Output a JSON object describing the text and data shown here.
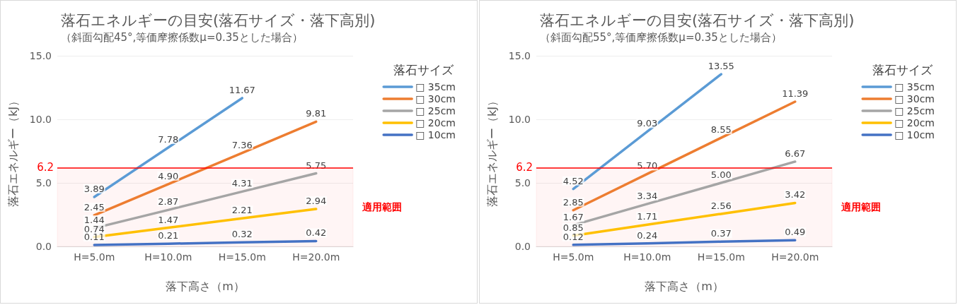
{
  "chart_data": [
    {
      "type": "line",
      "title": "落石エネルギーの目安(落石サイズ・落下高別)",
      "subtitle": "（斜面勾配45°,等価摩擦係数μ=0.35とした場合）",
      "xlabel": "落下高さ（m）",
      "ylabel": "落石エネルギー（kJ）",
      "legend_title": "落石サイズ",
      "categories": [
        "H=5.0m",
        "H=10.0m",
        "H=15.0m",
        "H=20.0m"
      ],
      "series": [
        {
          "name": "□ 35cm",
          "color": "#5b9bd5",
          "values": [
            3.89,
            7.78,
            11.67,
            null
          ],
          "value_labels": [
            "3.89",
            "7.78",
            "11.67",
            null
          ]
        },
        {
          "name": "□ 30cm",
          "color": "#ed7d31",
          "values": [
            2.45,
            4.9,
            7.36,
            9.81
          ],
          "value_labels": [
            "2.45",
            "4.90",
            "7.36",
            "9.81"
          ]
        },
        {
          "name": "□ 25cm",
          "color": "#a5a5a5",
          "values": [
            1.44,
            2.87,
            4.31,
            5.75
          ],
          "value_labels": [
            "1.44",
            "2.87",
            "4.31",
            "5.75"
          ]
        },
        {
          "name": "□ 20cm",
          "color": "#ffc000",
          "values": [
            0.74,
            1.47,
            2.21,
            2.94
          ],
          "value_labels": [
            "0.74",
            "1.47",
            "2.21",
            "2.94"
          ]
        },
        {
          "name": "□ 10cm",
          "color": "#4472c4",
          "values": [
            0.11,
            0.21,
            0.32,
            0.42
          ],
          "value_labels": [
            "0.11",
            "0.21",
            "0.32",
            "0.42"
          ]
        }
      ],
      "ylim": [
        0,
        15
      ],
      "yticks": [
        {
          "value": 0,
          "label": "0.0"
        },
        {
          "value": 5,
          "label": "5.0"
        },
        {
          "value": 10,
          "label": "10.0"
        },
        {
          "value": 15,
          "label": "15.0"
        }
      ],
      "grid": "y",
      "legend": "right",
      "marker": "none",
      "ref_lines": [
        {
          "axis": "y",
          "value": 6.2,
          "label": "6.2",
          "color": "#ff0000"
        }
      ],
      "bands": [
        {
          "axis": "y",
          "from": 0,
          "to": 6.2,
          "label": "適用範囲",
          "color": "#ff0000"
        }
      ]
    },
    {
      "type": "line",
      "title": "落石エネルギーの目安(落石サイズ・落下高別)",
      "subtitle": "（斜面勾配55°,等価摩擦係数μ=0.35とした場合）",
      "xlabel": "落下高さ（m）",
      "ylabel": "落石エネルギー（kJ）",
      "legend_title": "落石サイズ",
      "categories": [
        "H=5.0m",
        "H=10.0m",
        "H=15.0m",
        "H=20.0m"
      ],
      "series": [
        {
          "name": "□ 35cm",
          "color": "#5b9bd5",
          "values": [
            4.52,
            9.03,
            13.55,
            null
          ],
          "value_labels": [
            "4.52",
            "9.03",
            "13.55",
            null
          ]
        },
        {
          "name": "□ 30cm",
          "color": "#ed7d31",
          "values": [
            2.85,
            5.7,
            8.55,
            11.39
          ],
          "value_labels": [
            "2.85",
            "5.70",
            "8.55",
            "11.39"
          ]
        },
        {
          "name": "□ 25cm",
          "color": "#a5a5a5",
          "values": [
            1.67,
            3.34,
            5.0,
            6.67
          ],
          "value_labels": [
            "1.67",
            "3.34",
            "5.00",
            "6.67"
          ]
        },
        {
          "name": "□ 20cm",
          "color": "#ffc000",
          "values": [
            0.85,
            1.71,
            2.56,
            3.42
          ],
          "value_labels": [
            "0.85",
            "1.71",
            "2.56",
            "3.42"
          ]
        },
        {
          "name": "□ 10cm",
          "color": "#4472c4",
          "values": [
            0.12,
            0.24,
            0.37,
            0.49
          ],
          "value_labels": [
            "0.12",
            "0.24",
            "0.37",
            "0.49"
          ]
        }
      ],
      "ylim": [
        0,
        15
      ],
      "yticks": [
        {
          "value": 0,
          "label": "0.0"
        },
        {
          "value": 5,
          "label": "5.0"
        },
        {
          "value": 10,
          "label": "10.0"
        },
        {
          "value": 15,
          "label": "15.0"
        }
      ],
      "grid": "y",
      "legend": "right",
      "marker": "none",
      "ref_lines": [
        {
          "axis": "y",
          "value": 6.2,
          "label": "6.2",
          "color": "#ff0000"
        }
      ],
      "bands": [
        {
          "axis": "y",
          "from": 0,
          "to": 6.2,
          "label": "適用範囲",
          "color": "#ff0000"
        }
      ]
    }
  ]
}
